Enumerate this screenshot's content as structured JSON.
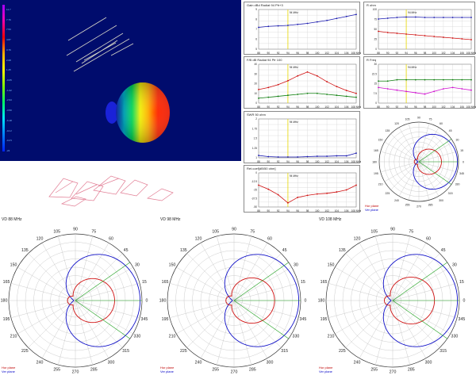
{
  "view3d": {
    "title_icon": "antenna-3d-radiation-view",
    "scale_labels": [
      "11.7",
      "7.76",
      "7.53",
      "4.87",
      "3.76",
      "2.08",
      "1.25",
      "-0.05",
      "-1.02",
      "-2.94",
      "-3.50",
      "-6.18",
      "-10.2",
      "-13.5",
      "-22"
    ],
    "colors": {
      "background": "#000c6d",
      "pattern_hot": "#ff1c00",
      "pattern_cold": "#2030ff"
    }
  },
  "legend": {
    "hor": "Hor plane",
    "ver": "Ver plane"
  },
  "charts": {
    "top_left_title": "Gain dBd Radiat 94 Pfr+3",
    "mid_left_title": "F/B dB Radiat 94 Pfr 100",
    "swr_title": "SWR 50 ohm",
    "rl_title": "Ret.coef[dB/50 ohm]",
    "r_title": "R ohm",
    "rx_title": "R Freq",
    "cursor": "94 MHz",
    "unit": "MHz",
    "x_ticks": [
      "88",
      "90",
      "92",
      "94",
      "96",
      "98",
      "100",
      "102",
      "104",
      "106",
      "108 MHz"
    ]
  },
  "chart_data": [
    {
      "type": "line",
      "title": "Gain dBd",
      "ylim": [
        5,
        9
      ],
      "x": [
        88,
        90,
        92,
        94,
        96,
        98,
        100,
        102,
        104,
        106,
        108
      ],
      "series": [
        {
          "values": [
            7.2,
            7.3,
            7.35,
            7.4,
            7.5,
            7.6,
            7.75,
            7.9,
            8.1,
            8.3,
            8.5
          ]
        }
      ]
    },
    {
      "type": "line",
      "title": "F/B dB",
      "ylim": [
        0,
        40
      ],
      "x": [
        88,
        90,
        92,
        94,
        96,
        98,
        100,
        102,
        104,
        106,
        108
      ],
      "series": [
        {
          "values": [
            14,
            16,
            19,
            23,
            28,
            32,
            28,
            22,
            17,
            13,
            10
          ]
        },
        {
          "values": [
            5,
            6,
            7,
            8,
            9,
            10,
            10,
            9,
            8,
            7,
            6
          ]
        }
      ]
    },
    {
      "type": "line",
      "title": "SWR 50 ohm",
      "ylim": [
        1,
        2
      ],
      "x": [
        88,
        90,
        92,
        94,
        96,
        98,
        100,
        102,
        104,
        106,
        108
      ],
      "series": [
        {
          "values": [
            1.06,
            1.03,
            1.02,
            1.02,
            1.02,
            1.03,
            1.04,
            1.04,
            1.05,
            1.05,
            1.12
          ]
        }
      ]
    },
    {
      "type": "line",
      "title": "Ret.coef[dB/50 ohm]",
      "ylim": [
        -50,
        0
      ],
      "x": [
        88,
        90,
        92,
        94,
        96,
        98,
        100,
        102,
        104,
        106,
        108
      ],
      "series": [
        {
          "values": [
            -18,
            -24,
            -32,
            -44,
            -36,
            -33,
            -31,
            -30,
            -28,
            -25,
            -18
          ]
        }
      ]
    },
    {
      "type": "line",
      "title": "R ohm",
      "ylim": [
        0,
        100
      ],
      "x": [
        88,
        90,
        92,
        94,
        96,
        98,
        100,
        102,
        104,
        106,
        108
      ],
      "series": [
        {
          "values": [
            76,
            78,
            80,
            81,
            81,
            80,
            80,
            80,
            80,
            80,
            80
          ]
        },
        {
          "values": [
            45,
            42,
            40,
            38,
            36,
            34,
            32,
            30,
            28,
            26,
            24
          ]
        }
      ]
    },
    {
      "type": "line",
      "title": "R Freq",
      "ylim": [
        0,
        30
      ],
      "x": [
        88,
        90,
        92,
        94,
        96,
        98,
        100,
        102,
        104,
        106,
        108
      ],
      "series": [
        {
          "values": [
            17,
            17,
            18,
            18,
            18,
            18,
            18,
            18,
            18,
            18,
            18
          ]
        },
        {
          "values": [
            12,
            11,
            10,
            9,
            8,
            7,
            9,
            11,
            12,
            11,
            10
          ]
        }
      ]
    }
  ],
  "polars": [
    {
      "title": "VD 88 MHz",
      "hor_scale": 1.0,
      "ver_scale": 0.62
    },
    {
      "title": "VD 98 MHz",
      "hor_scale": 1.0,
      "ver_scale": 0.64
    },
    {
      "title": "VD 108 MHz",
      "hor_scale": 1.0,
      "ver_scale": 0.66
    },
    {
      "title": "",
      "hor_scale": 1.0,
      "ver_scale": 0.6
    }
  ],
  "polar_angle_labels": [
    "90",
    "75",
    "60",
    "45",
    "30",
    "15",
    "0",
    "345",
    "330",
    "315",
    "300",
    "285",
    "270",
    "255",
    "240",
    "225",
    "210",
    "195",
    "180",
    "165",
    "150",
    "135",
    "120",
    "105"
  ]
}
